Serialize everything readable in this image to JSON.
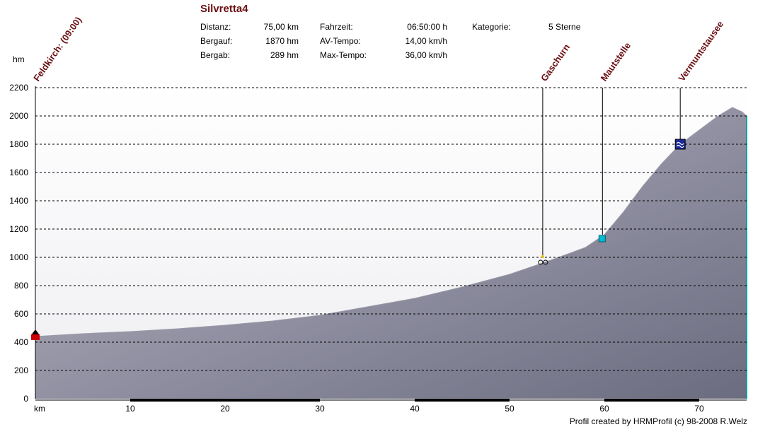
{
  "title": "Silvretta4",
  "stats": [
    {
      "label": "Distanz:",
      "value": "75,00 km"
    },
    {
      "label": "Bergauf:",
      "value": "1870 hm"
    },
    {
      "label": "Bergab:",
      "value": "289 hm"
    },
    {
      "label": "Fahrzeit:",
      "value": "06:50:00 h"
    },
    {
      "label": "AV-Tempo:",
      "value": "14,00 km/h"
    },
    {
      "label": "Max-Tempo:",
      "value": "36,00 km/h"
    },
    {
      "label": "Kategorie:",
      "value": "5 Sterne"
    }
  ],
  "footer": "Profil created by HRMProfil (c) 98-2008 R.Welz",
  "chart_data": {
    "type": "area",
    "xlabel": "km",
    "ylabel": "hm",
    "xlim": [
      0,
      75
    ],
    "ylim": [
      0,
      2200
    ],
    "x_ticks": [
      10,
      20,
      30,
      40,
      50,
      60,
      70
    ],
    "y_ticks": [
      0,
      200,
      400,
      600,
      800,
      1000,
      1200,
      1400,
      1600,
      1800,
      2000,
      2200
    ],
    "grid": true,
    "x": [
      0,
      5,
      10,
      15,
      20,
      25,
      30,
      35,
      40,
      45,
      50,
      53.5,
      56,
      58,
      60,
      62,
      64,
      66,
      68,
      70,
      72,
      73.5,
      74.5,
      75
    ],
    "y": [
      440,
      460,
      475,
      495,
      520,
      550,
      590,
      650,
      710,
      790,
      880,
      960,
      1020,
      1070,
      1160,
      1320,
      1500,
      1660,
      1800,
      1900,
      2000,
      2060,
      2030,
      2000
    ],
    "waypoints": [
      {
        "name": "Feldkirch: (09:00)",
        "km": 0,
        "hm": 440,
        "color": "#cc0000"
      },
      {
        "name": "Gaschurn",
        "km": 53.5,
        "hm": 980,
        "color": "#222222"
      },
      {
        "name": "Mautstelle",
        "km": 59.8,
        "hm": 1130,
        "color": "#00bcd4"
      },
      {
        "name": "Vermuntstausee",
        "km": 68,
        "hm": 1800,
        "color": "#1a2a9a"
      }
    ],
    "colors": {
      "terrain_dark": "#6e6e82",
      "terrain_light": "#b4b4c0",
      "label": "#6b0f12",
      "grid": "#000000",
      "edge": "#00a0a0"
    }
  }
}
